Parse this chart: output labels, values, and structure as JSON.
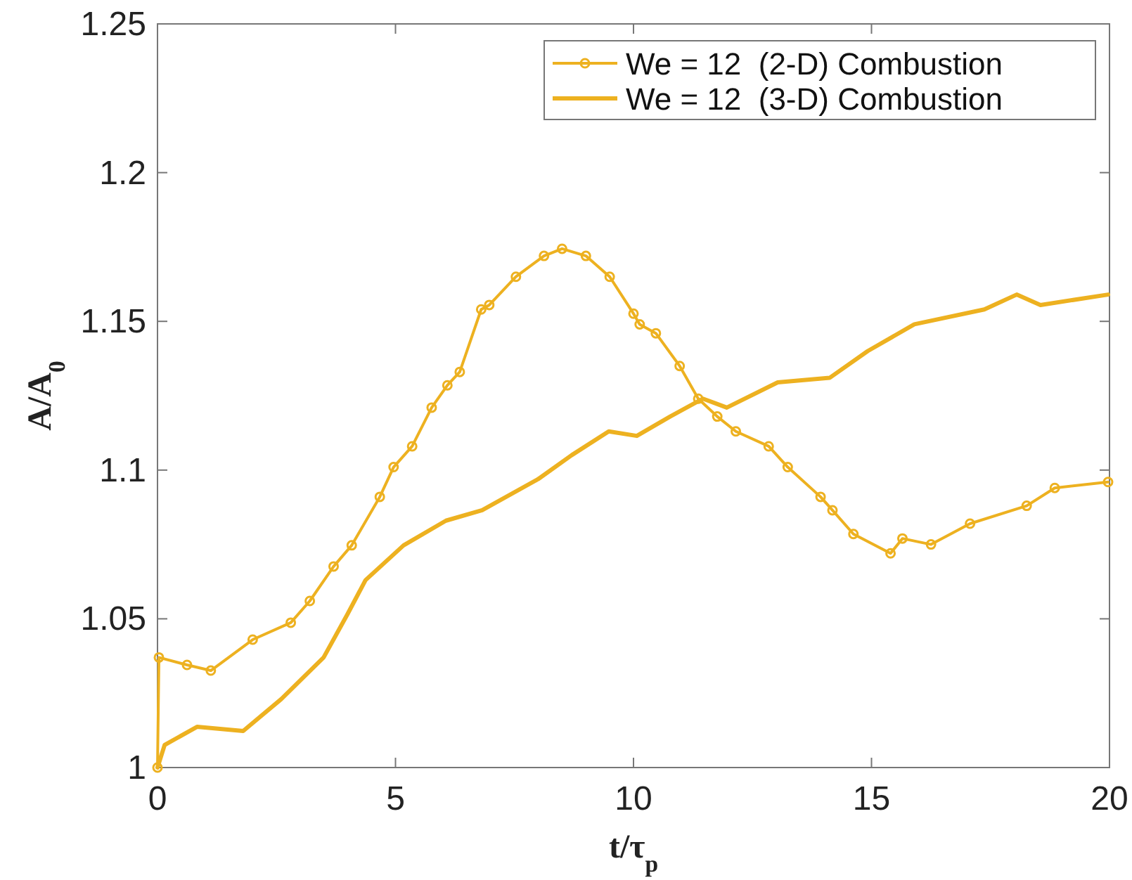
{
  "chart_data": {
    "type": "line",
    "xlabel": "t/τ$_{p}$",
    "ylabel": "A/A$_{0}$",
    "xlim": [
      0,
      20
    ],
    "ylim": [
      1,
      1.25
    ],
    "xticks": [
      0,
      5,
      10,
      15,
      20
    ],
    "yticks": [
      1,
      1.05,
      1.1,
      1.15,
      1.2,
      1.25
    ],
    "grid": false,
    "legend": "top right",
    "series": [
      {
        "name": "We = 12  (2-D) Combustion",
        "color": "#edb120",
        "marker": "circle",
        "x": [
          0,
          0.03,
          0.62,
          1.12,
          2.0,
          2.8,
          3.2,
          3.7,
          4.08,
          4.67,
          4.96,
          5.35,
          5.76,
          6.09,
          6.35,
          6.8,
          6.97,
          7.53,
          8.12,
          8.5,
          9.0,
          9.5,
          10.0,
          10.13,
          10.47,
          10.97,
          11.36,
          11.76,
          12.15,
          12.84,
          13.24,
          13.93,
          14.18,
          14.62,
          15.4,
          15.65,
          16.25,
          17.07,
          18.26,
          18.85,
          19.97
        ],
        "values": [
          1.0,
          1.037,
          1.0345,
          1.0326,
          1.043,
          1.0487,
          1.056,
          1.0676,
          1.0747,
          1.091,
          1.101,
          1.108,
          1.121,
          1.1285,
          1.133,
          1.154,
          1.1555,
          1.165,
          1.172,
          1.1744,
          1.172,
          1.165,
          1.1526,
          1.149,
          1.146,
          1.135,
          1.124,
          1.118,
          1.113,
          1.108,
          1.101,
          1.091,
          1.0865,
          1.0785,
          1.072,
          1.077,
          1.075,
          1.082,
          1.088,
          1.094,
          1.096
        ]
      },
      {
        "name": "We = 12  (3-D) Combustion",
        "color": "#edb120",
        "marker": "none",
        "x": [
          0,
          0.15,
          0.83,
          1.8,
          2.6,
          3.49,
          3.99,
          4.37,
          5.17,
          6.06,
          6.82,
          8.0,
          8.7,
          9.48,
          10.07,
          10.77,
          11.46,
          11.96,
          13.03,
          14.12,
          14.92,
          15.9,
          17.37,
          18.05,
          18.55,
          19.97
        ],
        "values": [
          1.0,
          1.0076,
          1.0137,
          1.0123,
          1.023,
          1.037,
          1.0515,
          1.063,
          1.0747,
          1.083,
          1.0865,
          1.097,
          1.105,
          1.113,
          1.1115,
          1.118,
          1.124,
          1.121,
          1.1295,
          1.131,
          1.14,
          1.149,
          1.154,
          1.159,
          1.1555,
          1.159
        ]
      }
    ]
  }
}
